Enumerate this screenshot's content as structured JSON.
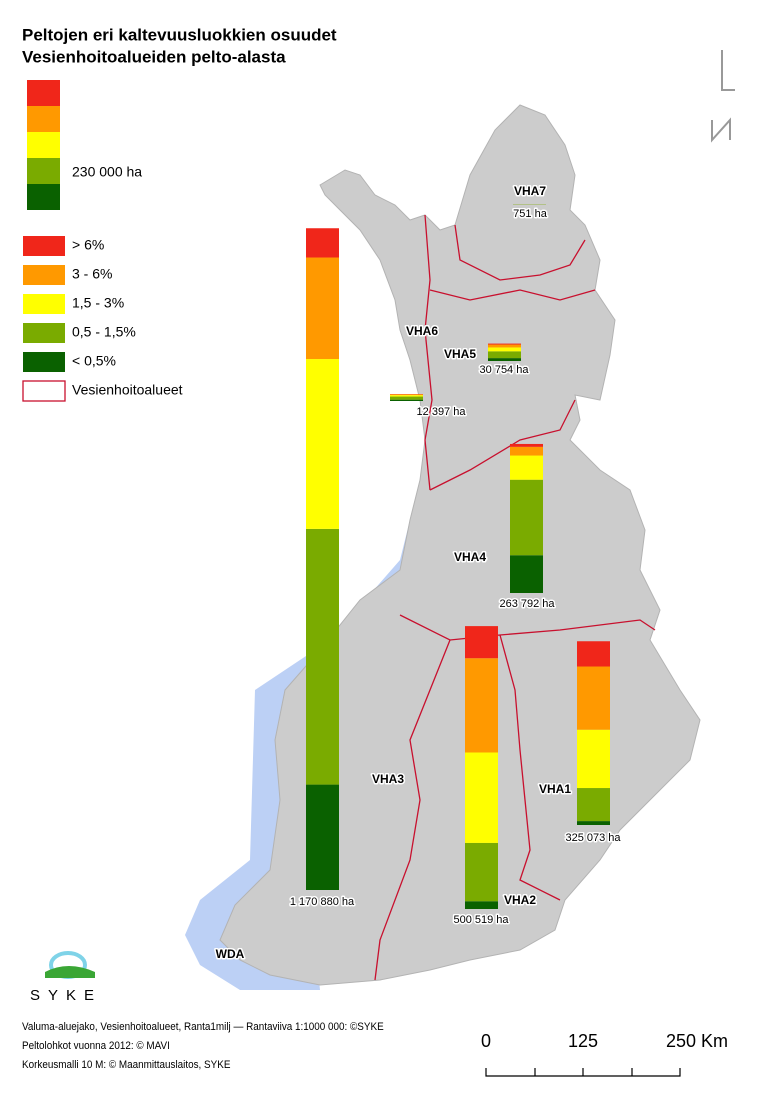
{
  "title": [
    "Peltojen eri kaltevuusluokkien osuudet",
    "Vesienhoitoalueiden pelto-alasta"
  ],
  "reference": {
    "value": 230000,
    "label": "230 000 ha"
  },
  "classes": [
    {
      "label": "> 6%",
      "color": "#f0261a"
    },
    {
      "label": "3 - 6%",
      "color": "#ff9900"
    },
    {
      "label": "1,5 - 3%",
      "color": "#ffff00"
    },
    {
      "label": "0,5 - 1,5%",
      "color": "#7aab00"
    },
    {
      "label": "< 0,5%",
      "color": "#0a6100"
    }
  ],
  "boundary_label": "Vesienhoitoalueet",
  "regions": [
    {
      "label": "VHA3",
      "total_label": "1 170 880 ha",
      "values": [
        51800,
        179600,
        300500,
        452400,
        186500
      ]
    },
    {
      "label": "VHA2",
      "total_label": "500 519 ha",
      "values": [
        56800,
        166800,
        160000,
        103200,
        13700
      ]
    },
    {
      "label": "VHA1",
      "total_label": "325 073 ha",
      "values": [
        44700,
        111800,
        103200,
        58500,
        6900
      ]
    },
    {
      "label": "VHA4",
      "total_label": "263 792 ha",
      "values": [
        5100,
        15400,
        42800,
        133600,
        66800
      ]
    },
    {
      "label": "VHA5",
      "total_label": "30 754 ha",
      "values": [
        1700,
        5100,
        6900,
        12000,
        5100
      ]
    },
    {
      "label": "VHA6",
      "total_label": "12 397 ha",
      "values": [
        500,
        1500,
        2500,
        5500,
        2400
      ]
    },
    {
      "label": "VHA7",
      "total_label": "751 ha",
      "values": [
        0,
        0,
        100,
        450,
        200
      ]
    }
  ],
  "other_label": "WDA",
  "logo": "SYKE",
  "credits": [
    "Valuma-aluejako, Vesienhoitoalueet, Ranta1milj — Rantaviiva 1:1000 000: ©SYKE",
    "Peltolohkot vuonna 2012: © MAVI",
    "Korkeusmalli 10 M: © Maanmittauslaitos, SYKE"
  ],
  "scalebar": [
    "0",
    "125",
    "250 Km"
  ]
}
